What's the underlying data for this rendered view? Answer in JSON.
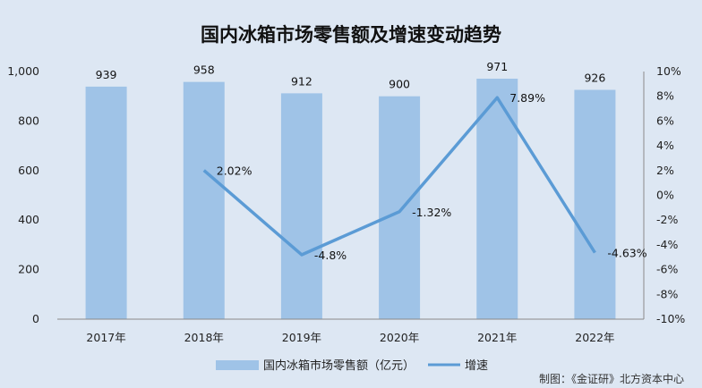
{
  "chart_data": {
    "type": "bar+line",
    "title": "国内冰箱市场零售额及增速变动趋势",
    "categories": [
      "2017年",
      "2018年",
      "2019年",
      "2020年",
      "2021年",
      "2022年"
    ],
    "series": [
      {
        "name": "国内冰箱市场零售额（亿元）",
        "type": "bar",
        "axis": "left",
        "values": [
          939,
          958,
          912,
          900,
          971,
          926
        ],
        "labels": [
          "939",
          "958",
          "912",
          "900",
          "971",
          "926"
        ]
      },
      {
        "name": "增速",
        "type": "line",
        "axis": "right",
        "values": [
          null,
          2.02,
          -4.8,
          -1.32,
          7.89,
          -4.63
        ],
        "labels": [
          "",
          "2.02%",
          "-4.8%",
          "-1.32%",
          "7.89%",
          "-4.63%"
        ]
      }
    ],
    "left_axis": {
      "ylim": [
        0,
        1000
      ],
      "ticks": [
        "0",
        "200",
        "400",
        "600",
        "800",
        "1,000"
      ]
    },
    "right_axis": {
      "ylim": [
        -10,
        10
      ],
      "ticks": [
        "-10%",
        "-8%",
        "-6%",
        "-4%",
        "-2%",
        "0%",
        "2%",
        "4%",
        "6%",
        "8%",
        "10%"
      ]
    },
    "grid": false,
    "legend": "bottom",
    "colors": {
      "bar": "#9fc3e7",
      "line": "#5b9bd5",
      "background": "#dde7f3"
    }
  },
  "footer": {
    "credit": "制图：《金证研》北方资本中心"
  }
}
